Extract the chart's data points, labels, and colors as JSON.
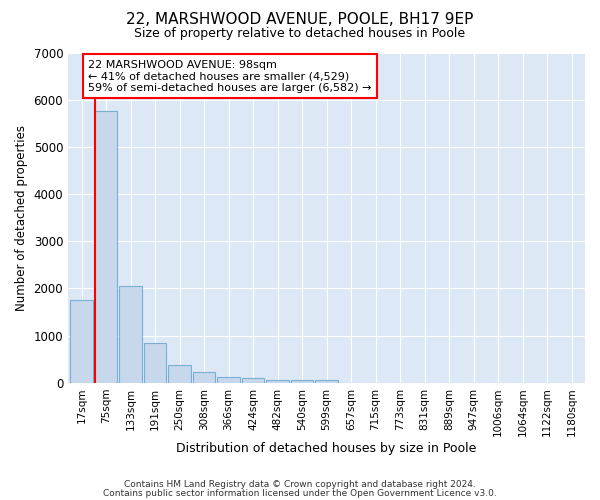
{
  "title1": "22, MARSHWOOD AVENUE, POOLE, BH17 9EP",
  "title2": "Size of property relative to detached houses in Poole",
  "xlabel": "Distribution of detached houses by size in Poole",
  "ylabel": "Number of detached properties",
  "bin_labels": [
    "17sqm",
    "75sqm",
    "133sqm",
    "191sqm",
    "250sqm",
    "308sqm",
    "366sqm",
    "424sqm",
    "482sqm",
    "540sqm",
    "599sqm",
    "657sqm",
    "715sqm",
    "773sqm",
    "831sqm",
    "889sqm",
    "947sqm",
    "1006sqm",
    "1064sqm",
    "1122sqm",
    "1180sqm"
  ],
  "bar_values": [
    1750,
    5750,
    2050,
    850,
    375,
    230,
    120,
    100,
    50,
    50,
    50,
    0,
    0,
    0,
    0,
    0,
    0,
    0,
    0,
    0,
    0
  ],
  "bar_color": "#c8d8ec",
  "bar_edge_color": "#7aafd4",
  "annotation_text": "22 MARSHWOOD AVENUE: 98sqm\n← 41% of detached houses are smaller (4,529)\n59% of semi-detached houses are larger (6,582) →",
  "annotation_box_color": "white",
  "annotation_box_edge_color": "red",
  "vline_color": "red",
  "ylim": [
    0,
    7000
  ],
  "yticks": [
    0,
    1000,
    2000,
    3000,
    4000,
    5000,
    6000,
    7000
  ],
  "footer1": "Contains HM Land Registry data © Crown copyright and database right 2024.",
  "footer2": "Contains public sector information licensed under the Open Government Licence v3.0.",
  "fig_bg_color": "#ffffff",
  "plot_bg_color": "#dce8f5"
}
